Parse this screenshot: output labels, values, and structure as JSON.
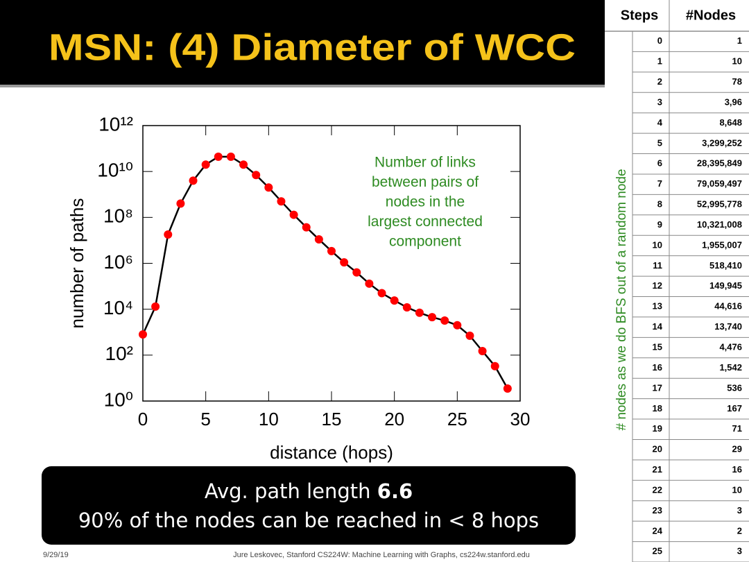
{
  "title": "MSN: (4) Diameter of WCC",
  "chart_data": {
    "type": "line",
    "log_y": true,
    "color": "#000000",
    "marker_color": "#ff0000",
    "xlabel": "distance (hops)",
    "ylabel": "number of paths",
    "annotation": [
      "Number of links",
      "between pairs of",
      "nodes in the",
      "largest connected",
      "component"
    ],
    "x": [
      0,
      1,
      2,
      3,
      4,
      5,
      6,
      7,
      8,
      9,
      10,
      11,
      12,
      13,
      14,
      15,
      16,
      17,
      18,
      19,
      20,
      21,
      22,
      23,
      24,
      25,
      26,
      27,
      28,
      29
    ],
    "values": [
      800,
      13000,
      18000000,
      400000000,
      4000000000,
      20000000000,
      44000000000,
      44000000000,
      20000000000,
      7000000000,
      2000000000,
      500000000,
      130000000,
      37000000,
      11000000,
      3400000,
      1100000,
      400000,
      130000,
      50000,
      24000,
      12000,
      7000,
      4500,
      3200,
      2000,
      700,
      150,
      33,
      3.5
    ],
    "xlim": [
      0,
      30
    ],
    "xticks": [
      0,
      5,
      10,
      15,
      20,
      25,
      30
    ],
    "ylim": [
      1,
      1000000000000
    ],
    "yticks": [
      {
        "value": 1,
        "label": "10⁰"
      },
      {
        "value": 100,
        "label": "10²"
      },
      {
        "value": 10000,
        "label": "10⁴"
      },
      {
        "value": 1000000,
        "label": "10⁶"
      },
      {
        "value": 100000000,
        "label": "10⁸"
      },
      {
        "value": 10000000000,
        "label": "10¹⁰"
      },
      {
        "value": 1000000000000,
        "label": "10¹²"
      }
    ]
  },
  "side_label": "# nodes as we do BFS out of a random node",
  "table": {
    "header": [
      "Steps",
      "#Nodes"
    ],
    "rows": [
      [
        0,
        "1"
      ],
      [
        1,
        "10"
      ],
      [
        2,
        "78"
      ],
      [
        3,
        "3,96"
      ],
      [
        4,
        "8,648"
      ],
      [
        5,
        "3,299,252"
      ],
      [
        6,
        "28,395,849"
      ],
      [
        7,
        "79,059,497"
      ],
      [
        8,
        "52,995,778"
      ],
      [
        9,
        "10,321,008"
      ],
      [
        10,
        "1,955,007"
      ],
      [
        11,
        "518,410"
      ],
      [
        12,
        "149,945"
      ],
      [
        13,
        "44,616"
      ],
      [
        14,
        "13,740"
      ],
      [
        15,
        "4,476"
      ],
      [
        16,
        "1,542"
      ],
      [
        17,
        "536"
      ],
      [
        18,
        "167"
      ],
      [
        19,
        "71"
      ],
      [
        20,
        "29"
      ],
      [
        21,
        "16"
      ],
      [
        22,
        "10"
      ],
      [
        23,
        "3"
      ],
      [
        24,
        "2"
      ],
      [
        25,
        "3"
      ]
    ]
  },
  "box": {
    "line1": "Avg. path length",
    "line1_bold": "6.6",
    "line2": "90% of the nodes can be reached in < 8 hops"
  },
  "footer": {
    "date": "9/29/19",
    "credit": "Jure Leskovec, Stanford CS224W: Machine Learning with Graphs, cs224w.stanford.edu"
  }
}
